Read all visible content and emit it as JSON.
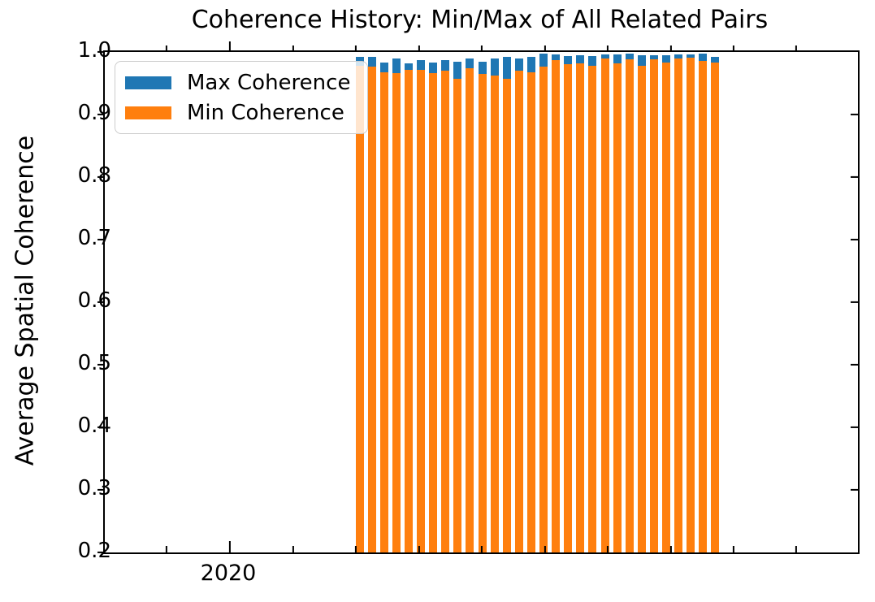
{
  "figure": {
    "title": "Coherence History: Min/Max of All Related Pairs",
    "ylabel": "Average Spatial Coherence"
  },
  "legend": {
    "items": [
      {
        "label": "Max Coherence",
        "color": "#1f77b4"
      },
      {
        "label": "Min Coherence",
        "color": "#ff7f0e"
      }
    ]
  },
  "colors": {
    "max_bar": "#1f77b4",
    "min_bar": "#ff7f0e",
    "axes": "#000000",
    "legend_edge": "#cccccc"
  },
  "chart_data": {
    "type": "bar",
    "stacked_overlay": "orange Min bars drawn from axis bottom up to min value; blue Max segment caps each bar from min value up to max value",
    "title": "Coherence History: Min/Max of All Related Pairs",
    "xlabel": "",
    "ylabel": "Average Spatial Coherence",
    "ylim": [
      0.2,
      1.0
    ],
    "y_tick_labels": [
      "0.2",
      "0.3",
      "0.4",
      "0.5",
      "0.6",
      "0.7",
      "0.8",
      "0.9",
      "1.0"
    ],
    "x_axis": {
      "kind": "time",
      "visible_major_tick_label": "2020",
      "minor_ticks_unlabeled": true
    },
    "grid": false,
    "legend_position": "upper left",
    "n_bars": 30,
    "series": [
      {
        "name": "Max Coherence",
        "color": "#1f77b4",
        "values": [
          0.992,
          0.992,
          0.983,
          0.99,
          0.982,
          0.987,
          0.983,
          0.987,
          0.985,
          0.99,
          0.985,
          0.99,
          0.992,
          0.99,
          0.992,
          0.997,
          0.996,
          0.994,
          0.995,
          0.994,
          0.996,
          0.996,
          0.997,
          0.995,
          0.995,
          0.995,
          0.996,
          0.996,
          0.997,
          0.992
        ]
      },
      {
        "name": "Min Coherence",
        "color": "#ff7f0e",
        "values": [
          0.978,
          0.977,
          0.968,
          0.966,
          0.971,
          0.972,
          0.966,
          0.97,
          0.957,
          0.974,
          0.965,
          0.962,
          0.957,
          0.97,
          0.968,
          0.977,
          0.987,
          0.98,
          0.982,
          0.978,
          0.99,
          0.982,
          0.988,
          0.978,
          0.988,
          0.983,
          0.99,
          0.991,
          0.986,
          0.983
        ]
      }
    ]
  }
}
